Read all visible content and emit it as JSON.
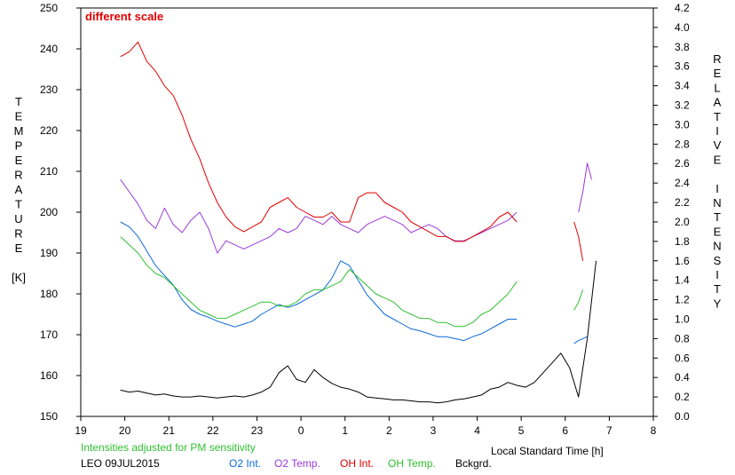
{
  "chart_data": {
    "type": "line",
    "annotation": "different scale",
    "xlabel": "Local Standard Time [h]",
    "ylabel_left": [
      "T",
      "E",
      "M",
      "P",
      "E",
      "R",
      "A",
      "T",
      "U",
      "R",
      "E",
      "",
      "[K]"
    ],
    "ylabel_right": [
      "R",
      "E",
      "L",
      "A",
      "T",
      "I",
      "V",
      "E",
      "",
      "I",
      "N",
      "T",
      "E",
      "N",
      "S",
      "I",
      "T",
      "Y"
    ],
    "xlim": [
      19,
      32
    ],
    "ylim_left": [
      150,
      250
    ],
    "ylim_right": [
      0.0,
      4.2
    ],
    "x_ticks": [
      "19",
      "20",
      "21",
      "22",
      "23",
      "0",
      "1",
      "2",
      "3",
      "4",
      "5",
      "6",
      "7",
      "8"
    ],
    "y_ticks_left": [
      "150",
      "160",
      "170",
      "180",
      "190",
      "200",
      "210",
      "220",
      "230",
      "240",
      "250"
    ],
    "y_ticks_right": [
      "0.0",
      "0.2",
      "0.4",
      "0.6",
      "0.8",
      "1.0",
      "1.2",
      "1.4",
      "1.6",
      "1.8",
      "2.0",
      "2.2",
      "2.4",
      "2.6",
      "2.8",
      "3.0",
      "3.2",
      "3.4",
      "3.6",
      "3.8",
      "4.0",
      "4.2"
    ],
    "footer_note": "Intensities adjusted for PM sensitivity",
    "station": "LEO 09JUL2015",
    "legend": [
      "O2 Int.",
      "O2 Temp.",
      "OH Int.",
      "OH Temp.",
      "Bckgrd."
    ],
    "colors": {
      "o2_int": "#0a6ad8",
      "o2_temp": "#9a3ad8",
      "oh_int": "#e00000",
      "oh_temp": "#30c030",
      "bckgrd": "#000000",
      "note_green": "#30c030"
    },
    "series": [
      {
        "name": "O2 Temp.",
        "axis": "left",
        "segments": [
          {
            "x": [
              19.9,
              20.1,
              20.3,
              20.5,
              20.7,
              20.9,
              21.1,
              21.3,
              21.5,
              21.7,
              21.9,
              22.1,
              22.3,
              22.5,
              22.7,
              22.9,
              23.1,
              23.3,
              23.5,
              23.7,
              23.9,
              24.1,
              24.3,
              24.5,
              24.7,
              24.9,
              25.1,
              25.3,
              25.5,
              25.7,
              25.9,
              26.1,
              26.3,
              26.5,
              26.7,
              26.9,
              27.1,
              27.3,
              27.5,
              27.7,
              27.9,
              28.1,
              28.3,
              28.5,
              28.7,
              28.9
            ],
            "y": [
              208,
              205,
              202,
              198,
              196,
              201,
              197,
              195,
              198,
              200,
              196,
              190,
              193,
              192,
              191,
              192,
              193,
              194,
              196,
              195,
              196,
              199,
              198,
              197,
              199,
              197,
              196,
              195,
              197,
              198,
              199,
              198,
              197,
              195,
              196,
              197,
              196,
              194,
              193,
              193,
              194,
              195,
              196,
              197,
              198,
              200
            ]
          },
          {
            "x": [
              30.3,
              30.4,
              30.5,
              30.6
            ],
            "y": [
              200,
              205,
              212,
              208
            ]
          }
        ]
      },
      {
        "name": "OH Int.",
        "axis": "right",
        "segments": [
          {
            "x": [
              19.9,
              20.1,
              20.3,
              20.5,
              20.7,
              20.9,
              21.1,
              21.3,
              21.5,
              21.7,
              21.9,
              22.1,
              22.3,
              22.5,
              22.7,
              22.9,
              23.1,
              23.3,
              23.5,
              23.7,
              23.9,
              24.1,
              24.3,
              24.5,
              24.7,
              24.9,
              25.1,
              25.3,
              25.5,
              25.7,
              25.9,
              26.1,
              26.3,
              26.5,
              26.7,
              26.9,
              27.1,
              27.3,
              27.5,
              27.7,
              27.9,
              28.1,
              28.3,
              28.5,
              28.7,
              28.9
            ],
            "y": [
              3.7,
              3.75,
              3.85,
              3.65,
              3.55,
              3.4,
              3.3,
              3.1,
              2.85,
              2.65,
              2.4,
              2.2,
              2.05,
              1.95,
              1.9,
              1.95,
              2.0,
              2.15,
              2.2,
              2.25,
              2.15,
              2.1,
              2.05,
              2.05,
              2.1,
              2.0,
              2.0,
              2.25,
              2.3,
              2.3,
              2.2,
              2.15,
              2.1,
              2.0,
              1.95,
              1.9,
              1.85,
              1.85,
              1.8,
              1.8,
              1.85,
              1.9,
              1.95,
              2.05,
              2.1,
              2.0
            ]
          },
          {
            "x": [
              30.2,
              30.3,
              30.4
            ],
            "y": [
              2.0,
              1.85,
              1.6
            ]
          }
        ]
      },
      {
        "name": "O2 Int.",
        "axis": "right",
        "segments": [
          {
            "x": [
              19.9,
              20.1,
              20.3,
              20.5,
              20.7,
              20.9,
              21.1,
              21.3,
              21.5,
              21.7,
              21.9,
              22.1,
              22.3,
              22.5,
              22.7,
              22.9,
              23.1,
              23.3,
              23.5,
              23.7,
              23.9,
              24.1,
              24.3,
              24.5,
              24.7,
              24.9,
              25.1,
              25.3,
              25.5,
              25.7,
              25.9,
              26.1,
              26.3,
              26.5,
              26.7,
              26.9,
              27.1,
              27.3,
              27.5,
              27.7,
              27.9,
              28.1,
              28.3,
              28.5,
              28.7,
              28.9
            ],
            "y": [
              2.0,
              1.95,
              1.85,
              1.7,
              1.55,
              1.45,
              1.35,
              1.2,
              1.1,
              1.05,
              1.02,
              0.98,
              0.95,
              0.92,
              0.95,
              0.98,
              1.05,
              1.1,
              1.15,
              1.12,
              1.15,
              1.2,
              1.25,
              1.3,
              1.42,
              1.6,
              1.55,
              1.4,
              1.25,
              1.15,
              1.05,
              1.0,
              0.95,
              0.9,
              0.88,
              0.85,
              0.82,
              0.82,
              0.8,
              0.78,
              0.82,
              0.85,
              0.9,
              0.95,
              1.0,
              1.0
            ]
          },
          {
            "x": [
              30.2,
              30.3,
              30.4,
              30.5
            ],
            "y": [
              0.75,
              0.78,
              0.8,
              0.82
            ]
          }
        ]
      },
      {
        "name": "OH Temp.",
        "axis": "left",
        "segments": [
          {
            "x": [
              19.9,
              20.1,
              20.3,
              20.5,
              20.7,
              20.9,
              21.1,
              21.3,
              21.5,
              21.7,
              21.9,
              22.1,
              22.3,
              22.5,
              22.7,
              22.9,
              23.1,
              23.3,
              23.5,
              23.7,
              23.9,
              24.1,
              24.3,
              24.5,
              24.7,
              24.9,
              25.1,
              25.3,
              25.5,
              25.7,
              25.9,
              26.1,
              26.3,
              26.5,
              26.7,
              26.9,
              27.1,
              27.3,
              27.5,
              27.7,
              27.9,
              28.1,
              28.3,
              28.5,
              28.7,
              28.9
            ],
            "y": [
              194,
              192,
              190,
              187,
              185,
              184,
              182,
              180,
              178,
              176,
              175,
              174,
              174,
              175,
              176,
              177,
              178,
              178,
              177,
              177,
              178,
              180,
              181,
              181,
              182,
              183,
              186,
              184,
              182,
              180,
              179,
              178,
              176,
              175,
              174,
              174,
              173,
              173,
              172,
              172,
              173,
              175,
              176,
              178,
              180,
              183
            ]
          },
          {
            "x": [
              30.2,
              30.3,
              30.4
            ],
            "y": [
              176,
              178,
              181
            ]
          }
        ]
      },
      {
        "name": "Bckgrd.",
        "axis": "right",
        "segments": [
          {
            "x": [
              19.9,
              20.1,
              20.3,
              20.5,
              20.7,
              20.9,
              21.1,
              21.3,
              21.5,
              21.7,
              21.9,
              22.1,
              22.3,
              22.5,
              22.7,
              22.9,
              23.1,
              23.3,
              23.5,
              23.7,
              23.9,
              24.1,
              24.3,
              24.5,
              24.7,
              24.9,
              25.1,
              25.3,
              25.5,
              25.7,
              25.9,
              26.1,
              26.3,
              26.5,
              26.7,
              26.9,
              27.1,
              27.3,
              27.5,
              27.7,
              27.9,
              28.1,
              28.3,
              28.5,
              28.7,
              28.9,
              29.1,
              29.3,
              29.5,
              29.7,
              29.9,
              30.1,
              30.3,
              30.5,
              30.7
            ],
            "y": [
              0.27,
              0.25,
              0.26,
              0.24,
              0.22,
              0.23,
              0.21,
              0.2,
              0.2,
              0.21,
              0.2,
              0.19,
              0.2,
              0.21,
              0.2,
              0.22,
              0.25,
              0.3,
              0.45,
              0.52,
              0.38,
              0.35,
              0.48,
              0.4,
              0.34,
              0.3,
              0.28,
              0.25,
              0.2,
              0.19,
              0.18,
              0.17,
              0.17,
              0.16,
              0.15,
              0.15,
              0.14,
              0.15,
              0.17,
              0.18,
              0.2,
              0.22,
              0.28,
              0.3,
              0.35,
              0.32,
              0.3,
              0.35,
              0.45,
              0.55,
              0.65,
              0.5,
              0.2,
              0.8,
              1.6
            ]
          }
        ]
      }
    ]
  }
}
